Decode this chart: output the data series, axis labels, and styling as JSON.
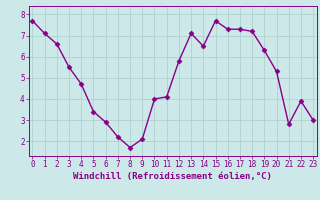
{
  "x": [
    0,
    1,
    2,
    3,
    4,
    5,
    6,
    7,
    8,
    9,
    10,
    11,
    12,
    13,
    14,
    15,
    16,
    17,
    18,
    19,
    20,
    21,
    22,
    23
  ],
  "y": [
    7.7,
    7.1,
    6.6,
    5.5,
    4.7,
    3.4,
    2.9,
    2.2,
    1.7,
    2.1,
    4.0,
    4.1,
    5.8,
    7.1,
    6.5,
    7.7,
    7.3,
    7.3,
    7.2,
    6.3,
    5.3,
    2.8,
    3.9,
    3.0
  ],
  "line_color": "#880088",
  "marker": "D",
  "markersize": 2.5,
  "linewidth": 1.0,
  "bg_color": "#cce8e8",
  "grid_color": "#aacccc",
  "xlabel": "Windchill (Refroidissement éolien,°C)",
  "xlabel_fontsize": 6.5,
  "yticks": [
    2,
    3,
    4,
    5,
    6,
    7,
    8
  ],
  "xticks": [
    0,
    1,
    2,
    3,
    4,
    5,
    6,
    7,
    8,
    9,
    10,
    11,
    12,
    13,
    14,
    15,
    16,
    17,
    18,
    19,
    20,
    21,
    22,
    23
  ],
  "ylim": [
    1.3,
    8.4
  ],
  "xlim": [
    -0.3,
    23.3
  ],
  "tick_fontsize": 5.5,
  "tick_color": "#880088",
  "label_color": "#880088",
  "spine_color": "#880088"
}
